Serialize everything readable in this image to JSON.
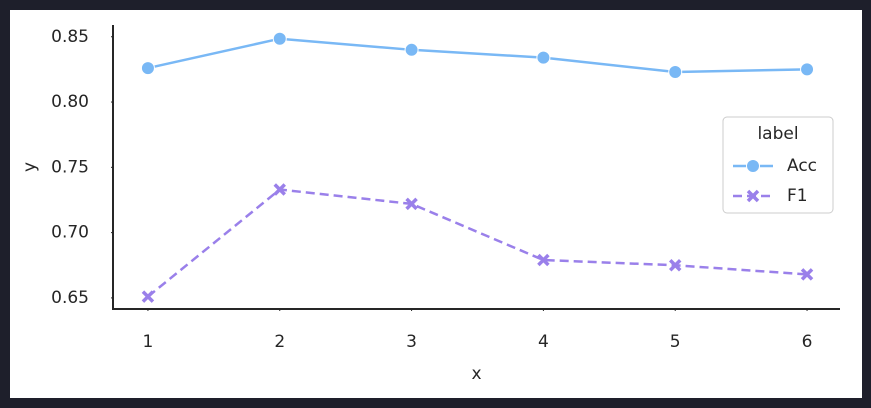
{
  "chart_data": {
    "type": "line",
    "xlabel": "x",
    "ylabel": "y",
    "x": [
      1,
      2,
      3,
      4,
      5,
      6
    ],
    "series": [
      {
        "name": "Acc",
        "color": "#79b8f5",
        "marker": "circle",
        "dash": false,
        "values": [
          0.826,
          0.8485,
          0.84,
          0.834,
          0.823,
          0.825
        ]
      },
      {
        "name": "F1",
        "color": "#9a80ea",
        "marker": "x",
        "dash": true,
        "values": [
          0.651,
          0.733,
          0.722,
          0.679,
          0.675,
          0.668
        ]
      }
    ],
    "xlim": [
      0.735,
      6.25
    ],
    "xticks": [
      1,
      2,
      3,
      4,
      5,
      6
    ],
    "ylim": [
      0.6415,
      0.859
    ],
    "yticks": [
      0.65,
      {
        "value": 0.7,
        "label": "0.70"
      },
      0.75,
      {
        "value": 0.8,
        "label": "0.80"
      },
      0.85
    ],
    "legend_title": "label",
    "legend": "center right"
  }
}
